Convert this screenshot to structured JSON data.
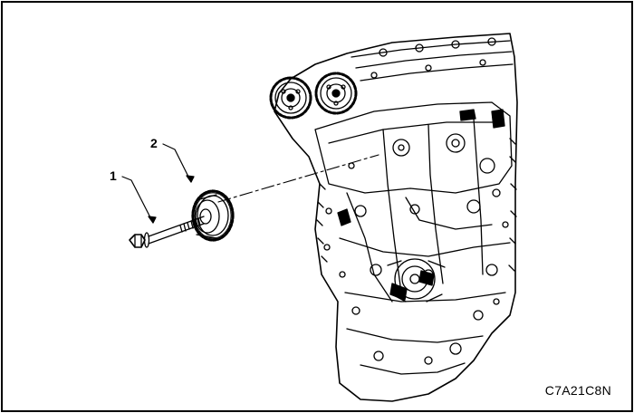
{
  "figure": {
    "callouts": [
      {
        "number": "1"
      },
      {
        "number": "2"
      }
    ],
    "figure_code": "C7A21C8N"
  },
  "colors": {
    "line": "#000000",
    "background": "#ffffff"
  }
}
